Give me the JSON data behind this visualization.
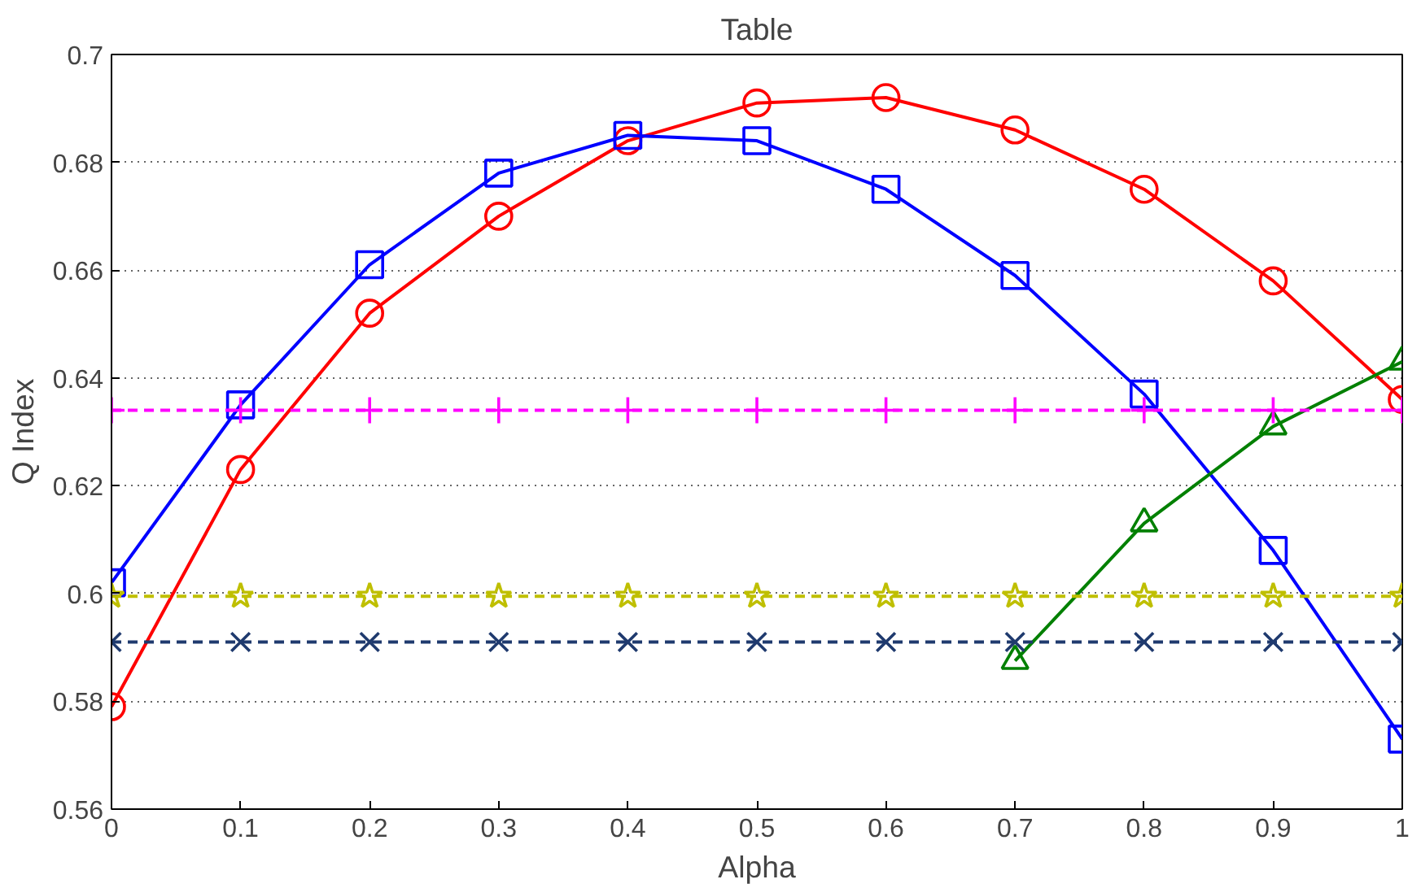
{
  "chart_data": {
    "type": "line",
    "title": "Table",
    "xlabel": "Alpha",
    "ylabel": "Q Index",
    "x": [
      0,
      0.1,
      0.2,
      0.3,
      0.4,
      0.5,
      0.6,
      0.7,
      0.8,
      0.9,
      1.0
    ],
    "xlim": [
      0,
      1
    ],
    "xticks": [
      0,
      0.1,
      0.2,
      0.3,
      0.4,
      0.5,
      0.6,
      0.7,
      0.8,
      0.9,
      1
    ],
    "ylim": [
      0.56,
      0.7
    ],
    "yticks": [
      0.56,
      0.58,
      0.6,
      0.62,
      0.64,
      0.66,
      0.68,
      0.7
    ],
    "grid": "y",
    "series": [
      {
        "color": "#ff0000",
        "marker": "circle",
        "line_style": "solid",
        "values": [
          0.579,
          0.623,
          0.652,
          0.67,
          0.684,
          0.691,
          0.692,
          0.686,
          0.675,
          0.658,
          0.636
        ]
      },
      {
        "color": "#0000ff",
        "marker": "square",
        "line_style": "solid",
        "values": [
          0.602,
          0.635,
          0.661,
          0.678,
          0.685,
          0.684,
          0.675,
          0.659,
          0.637,
          0.608,
          0.573
        ]
      },
      {
        "color": "#008000",
        "marker": "triangle",
        "line_style": "solid",
        "values": [
          null,
          null,
          null,
          null,
          null,
          null,
          null,
          0.5875,
          0.613,
          0.631,
          0.643
        ]
      },
      {
        "color": "#ff00ff",
        "marker": "cross",
        "line_style": "dashed",
        "values": [
          0.634,
          0.634,
          0.634,
          0.634,
          0.634,
          0.634,
          0.634,
          0.634,
          0.634,
          0.634,
          0.634
        ]
      },
      {
        "color": "#bfbf00",
        "marker": "star",
        "line_style": "dashed",
        "values": [
          0.5995,
          0.5995,
          0.5995,
          0.5995,
          0.5995,
          0.5995,
          0.5995,
          0.5995,
          0.5995,
          0.5995,
          0.5995
        ]
      },
      {
        "color": "#1f3a6e",
        "marker": "x",
        "line_style": "dashed",
        "values": [
          0.591,
          0.591,
          0.591,
          0.591,
          0.591,
          0.591,
          0.591,
          0.591,
          0.591,
          0.591,
          0.591
        ]
      }
    ]
  }
}
